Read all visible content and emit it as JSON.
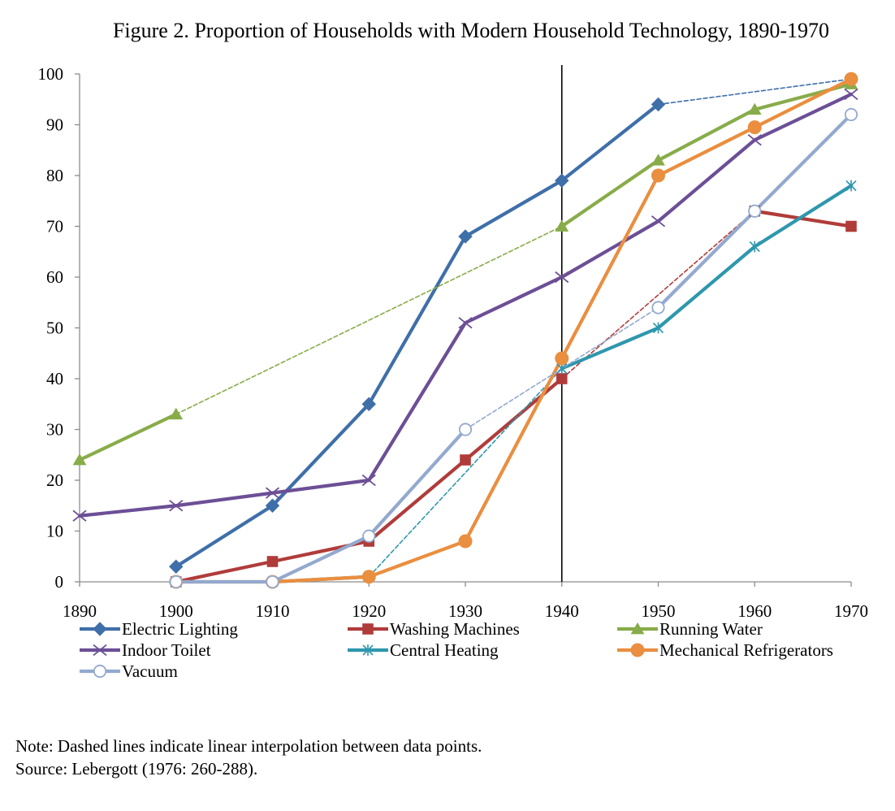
{
  "title": "Figure 2. Proportion of Households with Modern Household Technology, 1890-1970",
  "note": "Note: Dashed lines indicate linear interpolation between data points.",
  "source": "Source: Lebergott (1976: 260-288).",
  "chart_data": {
    "type": "line",
    "title": "Figure 2. Proportion of Households with Modern Household Technology, 1890-1970",
    "xlabel": "",
    "ylabel": "",
    "xlim": [
      1890,
      1970
    ],
    "ylim": [
      0,
      100
    ],
    "x_ticks": [
      "1890",
      "1900",
      "1910",
      "1920",
      "1930",
      "1940",
      "1950",
      "1960",
      "1970"
    ],
    "y_ticks": [
      "0",
      "10",
      "20",
      "30",
      "40",
      "50",
      "60",
      "70",
      "80",
      "90",
      "100"
    ],
    "grid": false,
    "vertical_reference_line": 1940,
    "legend_position": "bottom",
    "series": [
      {
        "name": "Electric Lighting",
        "color": "#3f6fa9",
        "marker": "diamond",
        "points": [
          [
            1900,
            3
          ],
          [
            1910,
            15
          ],
          [
            1920,
            35
          ],
          [
            1930,
            68
          ],
          [
            1940,
            79
          ],
          [
            1950,
            94
          ],
          [
            1970,
            99
          ]
        ],
        "dashed_segments": [
          [
            1950,
            1970
          ]
        ]
      },
      {
        "name": "Washing Machines",
        "color": "#b03c3a",
        "marker": "square",
        "points": [
          [
            1900,
            0
          ],
          [
            1910,
            4
          ],
          [
            1920,
            8
          ],
          [
            1930,
            24
          ],
          [
            1940,
            40
          ],
          [
            1960,
            73
          ],
          [
            1970,
            70
          ]
        ],
        "dashed_segments": [
          [
            1940,
            1960
          ]
        ]
      },
      {
        "name": "Running Water",
        "color": "#88ac4a",
        "marker": "triangle",
        "points": [
          [
            1890,
            24
          ],
          [
            1900,
            33
          ],
          [
            1940,
            70
          ],
          [
            1950,
            83
          ],
          [
            1960,
            93
          ],
          [
            1970,
            98
          ]
        ],
        "dashed_segments": [
          [
            1900,
            1940
          ]
        ]
      },
      {
        "name": "Indoor Toilet",
        "color": "#6c4f96",
        "marker": "x",
        "points": [
          [
            1890,
            13
          ],
          [
            1900,
            15
          ],
          [
            1910,
            17.5
          ],
          [
            1920,
            20
          ],
          [
            1930,
            51
          ],
          [
            1940,
            60
          ],
          [
            1950,
            71
          ],
          [
            1960,
            87
          ],
          [
            1970,
            96
          ]
        ],
        "dashed_segments": []
      },
      {
        "name": "Central Heating",
        "color": "#2e97ad",
        "marker": "asterisk",
        "points": [
          [
            1910,
            0
          ],
          [
            1920,
            1
          ],
          [
            1940,
            42
          ],
          [
            1950,
            50
          ],
          [
            1960,
            66
          ],
          [
            1970,
            78
          ]
        ],
        "dashed_segments": [
          [
            1920,
            1940
          ]
        ]
      },
      {
        "name": "Mechanical Refrigerators",
        "color": "#ea8e3f",
        "marker": "circle",
        "points": [
          [
            1900,
            0
          ],
          [
            1910,
            0
          ],
          [
            1920,
            1
          ],
          [
            1930,
            8
          ],
          [
            1940,
            44
          ],
          [
            1950,
            80
          ],
          [
            1960,
            89.5
          ],
          [
            1970,
            99
          ]
        ],
        "dashed_segments": []
      },
      {
        "name": "Vacuum",
        "color": "#93a9cf",
        "marker": "open-circle",
        "points": [
          [
            1900,
            0
          ],
          [
            1910,
            0
          ],
          [
            1920,
            9
          ],
          [
            1930,
            30
          ],
          [
            1950,
            54
          ],
          [
            1960,
            73
          ],
          [
            1970,
            92
          ]
        ],
        "dashed_segments": [
          [
            1930,
            1950
          ]
        ]
      }
    ]
  }
}
